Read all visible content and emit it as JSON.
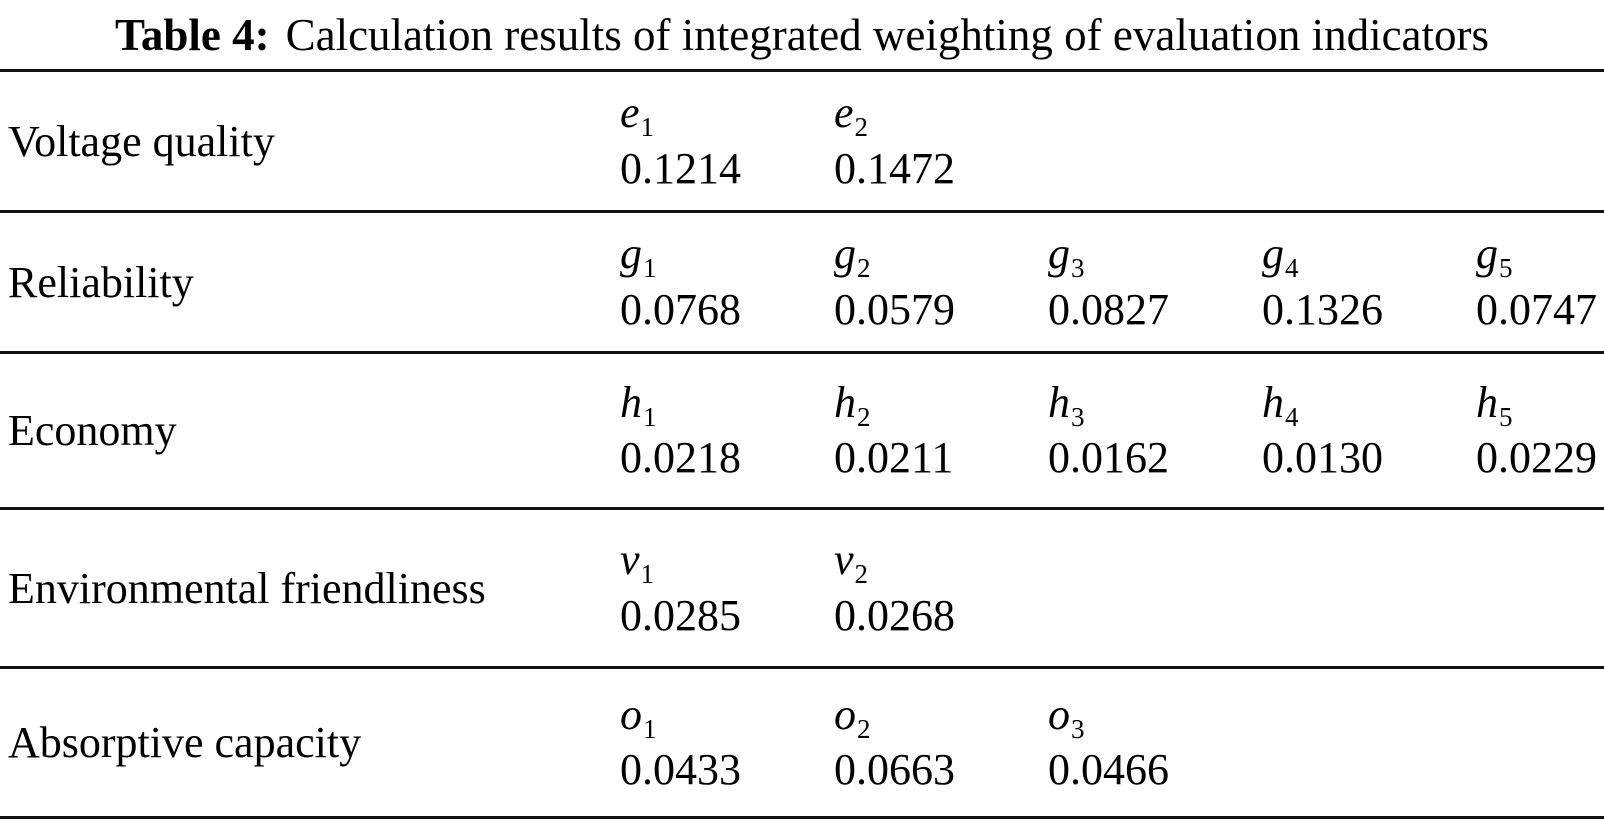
{
  "caption": {
    "label": "Table 4:",
    "text": "Calculation results of integrated weighting of evaluation indicators"
  },
  "colors": {
    "background": "#ffffff",
    "text": "#000000",
    "rule": "#111111"
  },
  "table": {
    "rows": [
      {
        "category": "Voltage quality",
        "cells": [
          {
            "var": "e",
            "sub": "1",
            "value": "0.1214"
          },
          {
            "var": "e",
            "sub": "2",
            "value": "0.1472"
          }
        ]
      },
      {
        "category": "Reliability",
        "cells": [
          {
            "var": "g",
            "sub": "1",
            "value": "0.0768"
          },
          {
            "var": "g",
            "sub": "2",
            "value": "0.0579"
          },
          {
            "var": "g",
            "sub": "3",
            "value": "0.0827"
          },
          {
            "var": "g",
            "sub": "4",
            "value": "0.1326"
          },
          {
            "var": "g",
            "sub": "5",
            "value": "0.0747"
          }
        ]
      },
      {
        "category": "Economy",
        "cells": [
          {
            "var": "h",
            "sub": "1",
            "value": "0.0218"
          },
          {
            "var": "h",
            "sub": "2",
            "value": "0.0211"
          },
          {
            "var": "h",
            "sub": "3",
            "value": "0.0162"
          },
          {
            "var": "h",
            "sub": "4",
            "value": "0.0130"
          },
          {
            "var": "h",
            "sub": "5",
            "value": "0.0229"
          }
        ]
      },
      {
        "category": "Environmental friendliness",
        "cells": [
          {
            "var": "v",
            "sub": "1",
            "value": "0.0285"
          },
          {
            "var": "v",
            "sub": "2",
            "value": "0.0268"
          }
        ]
      },
      {
        "category": "Absorptive capacity",
        "cells": [
          {
            "var": "o",
            "sub": "1",
            "value": "0.0433"
          },
          {
            "var": "o",
            "sub": "2",
            "value": "0.0663"
          },
          {
            "var": "o",
            "sub": "3",
            "value": "0.0466"
          }
        ]
      }
    ]
  }
}
